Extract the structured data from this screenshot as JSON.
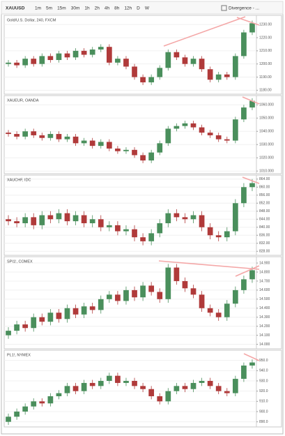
{
  "toolbar": {
    "symbol": "XAUUSD",
    "intervals": [
      "1m",
      "5m",
      "15m",
      "30m",
      "1h",
      "2h",
      "4h",
      "8h",
      "12h",
      "D",
      "W"
    ],
    "indicator": "Divergence - ..."
  },
  "chart_data": [
    {
      "type": "candlestick",
      "title": "Gold/U.S. Dollar, 240, FXCM",
      "open": [
        1200,
        1201,
        1199,
        1204,
        1200,
        1206,
        1203,
        1208,
        1205,
        1210,
        1207,
        1211,
        1213,
        1201,
        1204,
        1198,
        1190,
        1186,
        1190,
        1197,
        1209,
        1205,
        1200,
        1204,
        1196,
        1188,
        1192,
        1190,
        1206,
        1224
      ],
      "high": [
        1203,
        1203,
        1206,
        1206,
        1208,
        1208,
        1210,
        1210,
        1212,
        1212,
        1213,
        1215,
        1215,
        1206,
        1206,
        1200,
        1192,
        1192,
        1199,
        1211,
        1211,
        1207,
        1206,
        1206,
        1198,
        1194,
        1194,
        1208,
        1226,
        1233
      ],
      "low": [
        1198,
        1197,
        1197,
        1198,
        1198,
        1201,
        1201,
        1203,
        1203,
        1205,
        1205,
        1209,
        1199,
        1199,
        1196,
        1188,
        1184,
        1184,
        1188,
        1195,
        1203,
        1198,
        1198,
        1194,
        1186,
        1186,
        1188,
        1188,
        1204,
        1222
      ],
      "close": [
        1201,
        1199,
        1204,
        1200,
        1206,
        1203,
        1208,
        1205,
        1210,
        1207,
        1211,
        1213,
        1201,
        1204,
        1198,
        1190,
        1186,
        1190,
        1197,
        1209,
        1205,
        1200,
        1204,
        1196,
        1188,
        1192,
        1190,
        1206,
        1224,
        1231
      ],
      "ylim": [
        1177,
        1237
      ],
      "yticks": [
        {
          "value": 1180,
          "label": "1180.00"
        },
        {
          "value": 1190,
          "label": "1190.00"
        },
        {
          "value": 1200,
          "label": "1200.00"
        },
        {
          "value": 1210,
          "label": "1210.00"
        },
        {
          "value": 1220,
          "label": "1220.00"
        },
        {
          "value": 1230,
          "label": "1230.00"
        }
      ],
      "up_color": "#4a8f5c",
      "down_color": "#b03a3a"
    },
    {
      "type": "candlestick",
      "title": "XAUEUR, OANDA",
      "open": [
        1039,
        1038,
        1036,
        1040,
        1037,
        1035,
        1038,
        1034,
        1036,
        1031,
        1033,
        1029,
        1032,
        1027,
        1025,
        1026,
        1022,
        1018,
        1024,
        1031,
        1042,
        1044,
        1046,
        1043,
        1039,
        1037,
        1034,
        1033,
        1049,
        1058
      ],
      "high": [
        1041,
        1040,
        1042,
        1042,
        1039,
        1040,
        1040,
        1038,
        1038,
        1035,
        1035,
        1034,
        1034,
        1029,
        1028,
        1028,
        1024,
        1026,
        1033,
        1044,
        1046,
        1048,
        1048,
        1045,
        1041,
        1039,
        1036,
        1051,
        1060,
        1065
      ],
      "low": [
        1036,
        1034,
        1034,
        1035,
        1033,
        1033,
        1032,
        1032,
        1029,
        1029,
        1027,
        1027,
        1025,
        1023,
        1023,
        1020,
        1016,
        1016,
        1022,
        1029,
        1040,
        1042,
        1041,
        1037,
        1035,
        1032,
        1031,
        1031,
        1047,
        1056
      ],
      "close": [
        1038,
        1036,
        1040,
        1037,
        1035,
        1038,
        1034,
        1036,
        1031,
        1033,
        1029,
        1032,
        1027,
        1025,
        1026,
        1022,
        1018,
        1024,
        1031,
        1042,
        1044,
        1046,
        1043,
        1039,
        1037,
        1034,
        1033,
        1049,
        1058,
        1063
      ],
      "ylim": [
        1008,
        1067
      ],
      "yticks": [
        {
          "value": 1010,
          "label": "1010.000"
        },
        {
          "value": 1020,
          "label": "1020.000"
        },
        {
          "value": 1030,
          "label": "1030.000"
        },
        {
          "value": 1040,
          "label": "1040.000"
        },
        {
          "value": 1050,
          "label": "1050.000"
        },
        {
          "value": 1060,
          "label": "1060.000"
        }
      ],
      "up_color": "#4a8f5c",
      "down_color": "#b03a3a"
    },
    {
      "type": "candlestick",
      "title": "XAUCHF, IDC",
      "open": [
        844,
        843,
        842,
        845,
        841,
        846,
        844,
        847,
        843,
        846,
        842,
        844,
        840,
        841,
        838,
        839,
        835,
        833,
        837,
        842,
        847,
        845,
        844,
        846,
        840,
        836,
        835,
        838,
        852,
        860
      ],
      "high": [
        846,
        845,
        847,
        847,
        848,
        848,
        849,
        849,
        848,
        848,
        846,
        846,
        843,
        843,
        841,
        841,
        837,
        839,
        844,
        849,
        849,
        847,
        848,
        848,
        842,
        838,
        840,
        854,
        862,
        864
      ],
      "low": [
        841,
        840,
        840,
        839,
        839,
        842,
        842,
        841,
        841,
        840,
        840,
        838,
        838,
        836,
        836,
        833,
        831,
        831,
        835,
        840,
        843,
        842,
        842,
        838,
        834,
        833,
        833,
        836,
        850,
        858
      ],
      "close": [
        843,
        842,
        845,
        841,
        846,
        844,
        847,
        843,
        846,
        842,
        844,
        840,
        841,
        838,
        839,
        835,
        833,
        837,
        842,
        847,
        845,
        844,
        846,
        840,
        836,
        835,
        838,
        852,
        860,
        862
      ],
      "ylim": [
        826,
        866
      ],
      "yticks": [
        {
          "value": 828,
          "label": "828.00"
        },
        {
          "value": 832,
          "label": "832.00"
        },
        {
          "value": 836,
          "label": "836.00"
        },
        {
          "value": 840,
          "label": "840.00"
        },
        {
          "value": 844,
          "label": "844.00"
        },
        {
          "value": 848,
          "label": "848.00"
        },
        {
          "value": 852,
          "label": "852.00"
        },
        {
          "value": 856,
          "label": "856.00"
        },
        {
          "value": 860,
          "label": "860.00"
        },
        {
          "value": 864,
          "label": "864.00"
        }
      ],
      "up_color": "#4a8f5c",
      "down_color": "#b03a3a"
    },
    {
      "type": "candlestick",
      "title": "SPI1!, COMEX",
      "open": [
        14.1,
        14.15,
        14.22,
        14.18,
        14.3,
        14.25,
        14.35,
        14.28,
        14.4,
        14.33,
        14.42,
        14.38,
        14.5,
        14.55,
        14.48,
        14.6,
        14.52,
        14.65,
        14.58,
        14.5,
        14.85,
        14.7,
        14.62,
        14.55,
        14.4,
        14.35,
        14.3,
        14.45,
        14.6,
        14.72
      ],
      "high": [
        14.19,
        14.26,
        14.26,
        14.34,
        14.34,
        14.39,
        14.39,
        14.44,
        14.44,
        14.46,
        14.46,
        14.54,
        14.59,
        14.59,
        14.64,
        14.64,
        14.69,
        14.69,
        14.62,
        14.89,
        14.89,
        14.74,
        14.66,
        14.59,
        14.44,
        14.39,
        14.49,
        14.64,
        14.76,
        14.86
      ],
      "low": [
        14.06,
        14.11,
        14.14,
        14.14,
        14.21,
        14.21,
        14.24,
        14.24,
        14.29,
        14.29,
        14.34,
        14.34,
        14.46,
        14.44,
        14.44,
        14.48,
        14.48,
        14.54,
        14.46,
        14.46,
        14.66,
        14.58,
        14.51,
        14.36,
        14.31,
        14.26,
        14.26,
        14.41,
        14.56,
        14.68
      ],
      "close": [
        14.15,
        14.22,
        14.18,
        14.3,
        14.25,
        14.35,
        14.28,
        14.4,
        14.33,
        14.42,
        14.38,
        14.5,
        14.55,
        14.48,
        14.6,
        14.52,
        14.65,
        14.58,
        14.5,
        14.85,
        14.7,
        14.62,
        14.55,
        14.4,
        14.35,
        14.3,
        14.45,
        14.6,
        14.72,
        14.82
      ],
      "ylim": [
        13.95,
        14.97
      ],
      "yticks": [
        {
          "value": 14.0,
          "label": "14.000"
        },
        {
          "value": 14.1,
          "label": "14.100"
        },
        {
          "value": 14.2,
          "label": "14.200"
        },
        {
          "value": 14.3,
          "label": "14.300"
        },
        {
          "value": 14.4,
          "label": "14.400"
        },
        {
          "value": 14.5,
          "label": "14.500"
        },
        {
          "value": 14.6,
          "label": "14.600"
        },
        {
          "value": 14.7,
          "label": "14.700"
        },
        {
          "value": 14.8,
          "label": "14.800"
        },
        {
          "value": 14.9,
          "label": "14.900"
        }
      ],
      "up_color": "#4a8f5c",
      "down_color": "#b03a3a"
    },
    {
      "type": "candlestick",
      "title": "PL1!, NYMEX",
      "open": [
        890,
        895,
        900,
        905,
        910,
        908,
        915,
        918,
        925,
        920,
        928,
        925,
        930,
        935,
        928,
        930,
        925,
        922,
        915,
        910,
        920,
        925,
        922,
        928,
        930,
        925,
        920,
        918,
        932,
        945
      ],
      "high": [
        898,
        903,
        908,
        913,
        913,
        918,
        921,
        928,
        928,
        931,
        931,
        933,
        938,
        938,
        933,
        933,
        928,
        925,
        918,
        923,
        928,
        928,
        931,
        933,
        933,
        928,
        923,
        935,
        948,
        951
      ],
      "low": [
        887,
        892,
        897,
        902,
        905,
        905,
        912,
        915,
        917,
        917,
        922,
        922,
        927,
        925,
        925,
        922,
        919,
        912,
        907,
        907,
        917,
        919,
        919,
        925,
        922,
        917,
        915,
        915,
        929,
        942
      ],
      "close": [
        895,
        900,
        905,
        910,
        908,
        915,
        918,
        925,
        920,
        928,
        925,
        930,
        935,
        928,
        930,
        925,
        922,
        915,
        910,
        920,
        925,
        922,
        928,
        930,
        925,
        920,
        918,
        932,
        945,
        948
      ],
      "ylim": [
        885,
        960
      ],
      "yticks": [
        {
          "value": 890,
          "label": "890.0"
        },
        {
          "value": 900,
          "label": "900.0"
        },
        {
          "value": 910,
          "label": "910.0"
        },
        {
          "value": 920,
          "label": "920.0"
        },
        {
          "value": 930,
          "label": "930.0"
        },
        {
          "value": 940,
          "label": "940.0"
        },
        {
          "value": 950,
          "label": "950.0"
        }
      ],
      "up_color": "#4a8f5c",
      "down_color": "#b03a3a"
    }
  ]
}
